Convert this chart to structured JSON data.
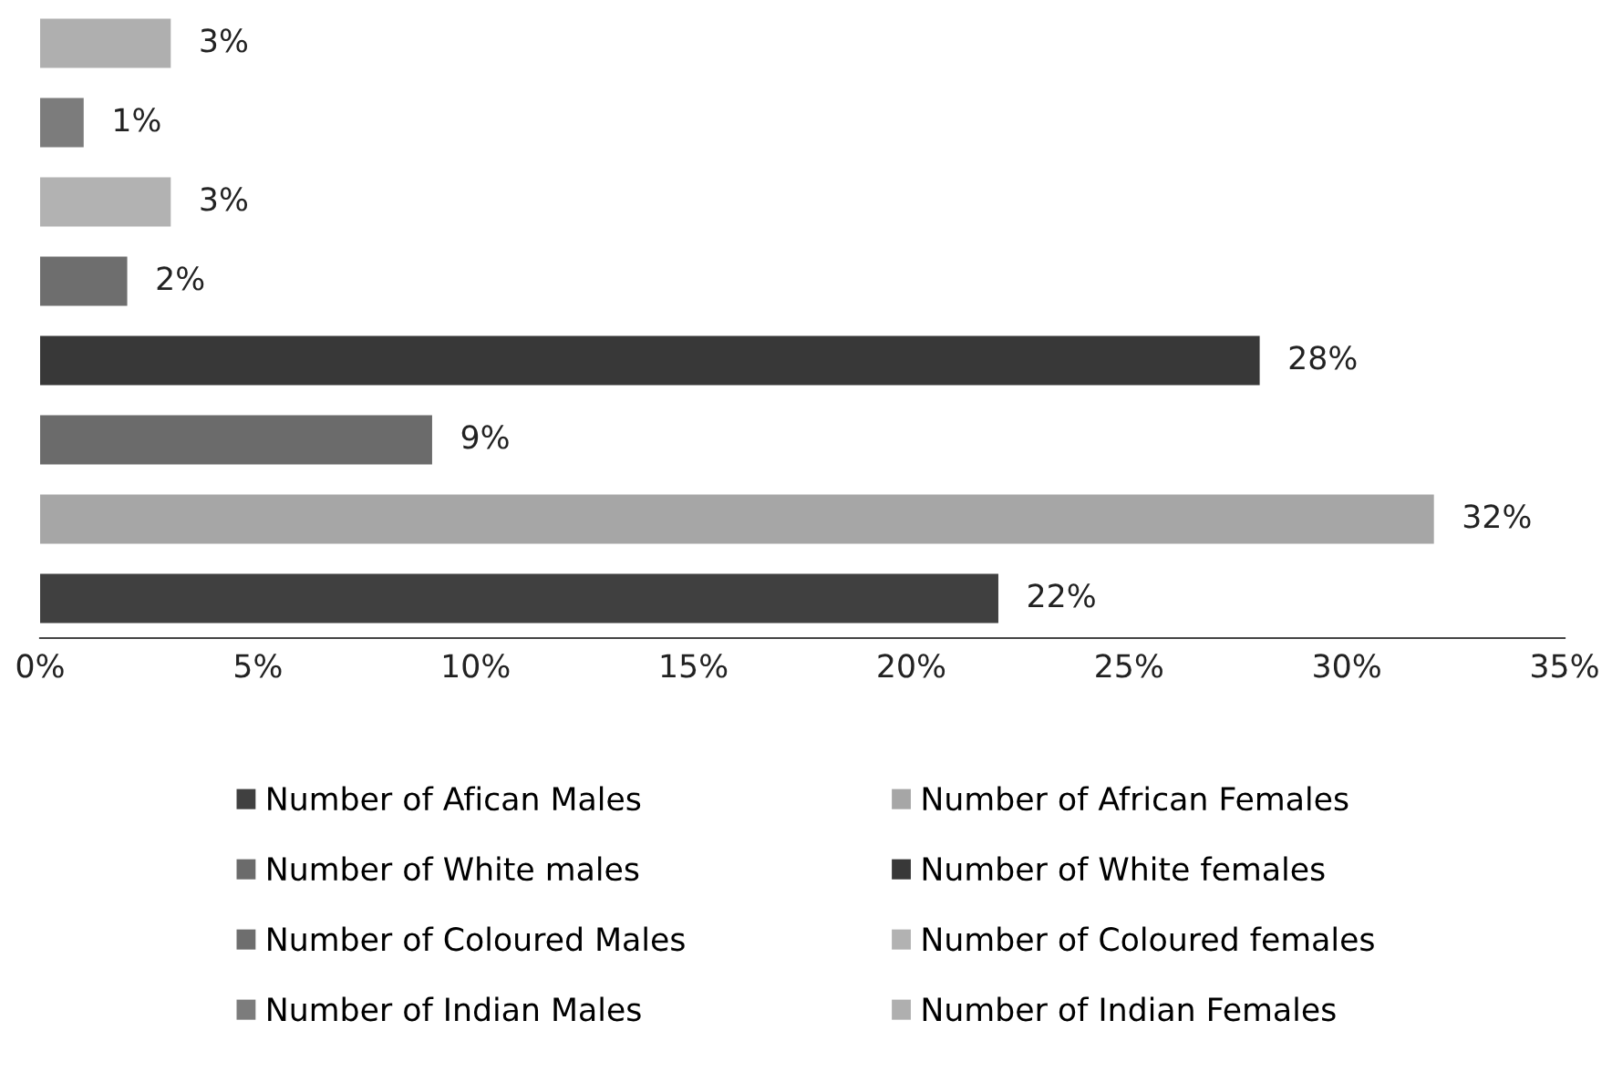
{
  "chart_data": {
    "type": "bar",
    "orientation": "horizontal",
    "stacked": true,
    "tick_labels": "x",
    "legend": "bottom",
    "categories": [
      null,
      null,
      null,
      null,
      null,
      null,
      null,
      null
    ],
    "xlim": [
      0,
      35
    ],
    "xticks": [
      {
        "value": 0,
        "label": "0%"
      },
      {
        "value": 5,
        "label": "5%"
      },
      {
        "value": 10,
        "label": "10%"
      },
      {
        "value": 15,
        "label": "15%"
      },
      {
        "value": 20,
        "label": "20%"
      },
      {
        "value": 25,
        "label": "25%"
      },
      {
        "value": 30,
        "label": "30%"
      },
      {
        "value": 35,
        "label": "35%"
      }
    ],
    "series": [
      {
        "name": "Number of Afican Males",
        "color": "#404040",
        "values": [
          null,
          null,
          null,
          null,
          null,
          null,
          null,
          22
        ],
        "value_labels": [
          null,
          null,
          null,
          null,
          null,
          null,
          null,
          "22%"
        ]
      },
      {
        "name": "Number of African Females",
        "color": "#a6a6a6",
        "values": [
          null,
          null,
          null,
          null,
          null,
          null,
          32,
          null
        ],
        "value_labels": [
          null,
          null,
          null,
          null,
          null,
          null,
          "32%",
          null
        ]
      },
      {
        "name": "Number of White males",
        "color": "#6b6b6b",
        "values": [
          null,
          null,
          null,
          null,
          null,
          9,
          null,
          null
        ],
        "value_labels": [
          null,
          null,
          null,
          null,
          null,
          "9%",
          null,
          null
        ]
      },
      {
        "name": "Number of White females",
        "color": "#383838",
        "values": [
          null,
          null,
          null,
          null,
          28,
          null,
          null,
          null
        ],
        "value_labels": [
          null,
          null,
          null,
          null,
          "28%",
          null,
          null,
          null
        ]
      },
      {
        "name": "Number of Coloured Males",
        "color": "#6e6e6e",
        "values": [
          null,
          null,
          null,
          2,
          null,
          null,
          null,
          null
        ],
        "value_labels": [
          null,
          null,
          null,
          "2%",
          null,
          null,
          null,
          null
        ]
      },
      {
        "name": "Number of Coloured females",
        "color": "#b2b2b2",
        "values": [
          null,
          null,
          3,
          null,
          null,
          null,
          null,
          null
        ],
        "value_labels": [
          null,
          null,
          "3%",
          null,
          null,
          null,
          null,
          null
        ]
      },
      {
        "name": "Number of Indian Males",
        "color": "#7c7c7c",
        "values": [
          null,
          1,
          null,
          null,
          null,
          null,
          null,
          null
        ],
        "value_labels": [
          null,
          "1%",
          null,
          null,
          null,
          null,
          null,
          null
        ]
      },
      {
        "name": "Number of Indian Females",
        "color": "#afafaf",
        "values": [
          3,
          null,
          null,
          null,
          null,
          null,
          null,
          null
        ],
        "value_labels": [
          "3%",
          null,
          null,
          null,
          null,
          null,
          null,
          null
        ]
      }
    ]
  }
}
